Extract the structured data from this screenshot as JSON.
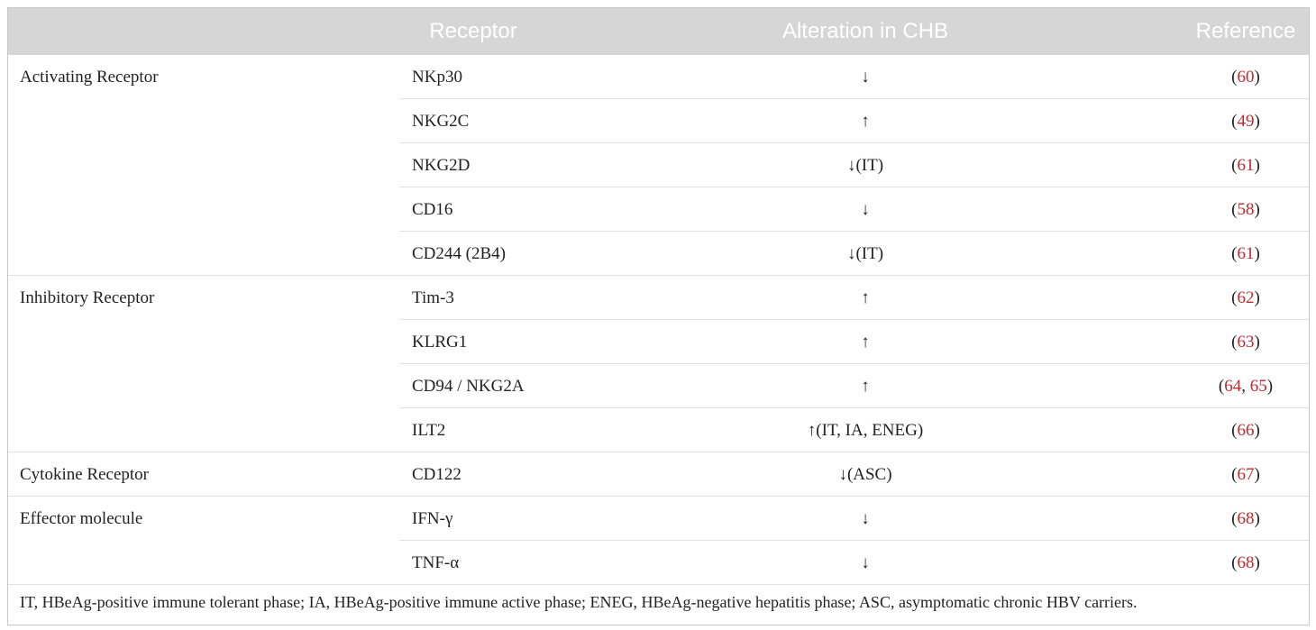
{
  "table": {
    "header": [
      "Receptor",
      "Alteration in CHB",
      "Reference"
    ],
    "groups": [
      {
        "label": "Activating Receptor",
        "rows": [
          [
            "NKp30",
            "↓",
            "(60)"
          ],
          [
            "NKG2C",
            "↑",
            "(49)"
          ],
          [
            "NKG2D",
            "↓(IT)",
            "(61)"
          ],
          [
            "CD16",
            "↓",
            "(58)"
          ],
          [
            "CD244 (2B4)",
            "↓(IT)",
            "(61)"
          ]
        ]
      },
      {
        "label": "Inhibitory Receptor",
        "rows": [
          [
            "Tim-3",
            "↑",
            "(62)"
          ],
          [
            "KLRG1",
            "↑",
            "(63)"
          ],
          [
            "CD94 / NKG2A",
            "↑",
            "(64, 65)"
          ],
          [
            "ILT2",
            "↑(IT, IA, ENEG)",
            "(66)"
          ]
        ]
      },
      {
        "label": "Cytokine Receptor",
        "rows": [
          [
            "CD122",
            "↓(ASC)",
            "(67)"
          ]
        ]
      },
      {
        "label": "Effector molecule",
        "rows": [
          [
            "IFN-γ",
            "↓",
            "(68)"
          ],
          [
            "TNF-α",
            "↓",
            "(68)"
          ]
        ]
      }
    ],
    "footnote": "IT, HBeAg-positive immune tolerant phase; IA, HBeAg-positive immune active phase; ENEG, HBeAg-negative hepatitis phase; ASC, asymptomatic chronic HBV carriers."
  }
}
